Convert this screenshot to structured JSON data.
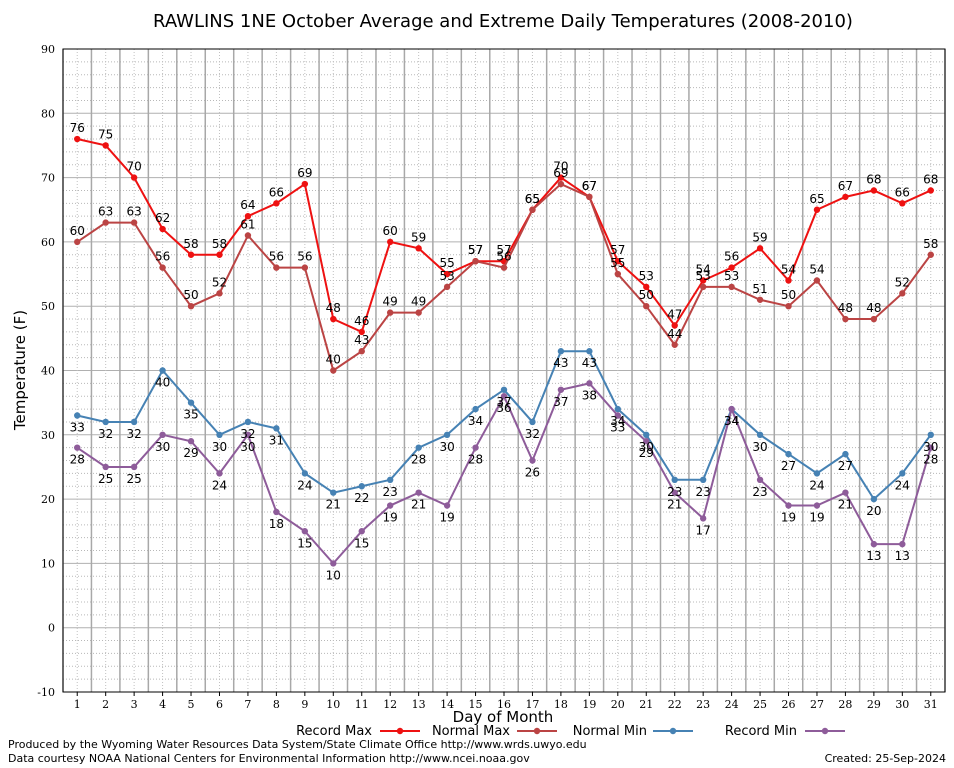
{
  "chart_data": {
    "type": "line",
    "title": "RAWLINS 1NE October Average and Extreme Daily Temperatures (2008-2010)",
    "xlabel": "Day of Month",
    "ylabel": "Temperature (F)",
    "ylim": [
      -10,
      90
    ],
    "yticks": [
      -10,
      0,
      10,
      20,
      30,
      40,
      50,
      60,
      70,
      80,
      90
    ],
    "categories": [
      "1",
      "2",
      "3",
      "4",
      "5",
      "6",
      "7",
      "8",
      "9",
      "10",
      "11",
      "12",
      "13",
      "14",
      "15",
      "16",
      "17",
      "18",
      "19",
      "20",
      "21",
      "22",
      "23",
      "24",
      "25",
      "26",
      "27",
      "28",
      "29",
      "30",
      "31"
    ],
    "grid": true,
    "legend_position": "bottom",
    "series": [
      {
        "name": "Record Max",
        "color": "#ee1111",
        "values": [
          76,
          75,
          70,
          62,
          58,
          58,
          64,
          66,
          69,
          48,
          46,
          60,
          59,
          55,
          57,
          57,
          65,
          70,
          67,
          57,
          53,
          47,
          54,
          56,
          59,
          54,
          65,
          67,
          68,
          66,
          68
        ]
      },
      {
        "name": "Normal Max",
        "color": "#bb4444",
        "values": [
          60,
          63,
          63,
          56,
          50,
          52,
          61,
          56,
          56,
          40,
          43,
          49,
          49,
          53,
          57,
          56,
          65,
          69,
          67,
          55,
          50,
          44,
          53,
          53,
          51,
          50,
          54,
          48,
          48,
          52,
          58
        ]
      },
      {
        "name": "Normal Min",
        "color": "#4682b4",
        "values": [
          33,
          32,
          32,
          40,
          35,
          30,
          32,
          31,
          24,
          21,
          22,
          23,
          28,
          30,
          34,
          37,
          32,
          43,
          43,
          34,
          30,
          23,
          23,
          34,
          30,
          27,
          24,
          27,
          20,
          24,
          30
        ]
      },
      {
        "name": "Record Min",
        "color": "#8e5c9a",
        "values": [
          28,
          25,
          25,
          30,
          29,
          24,
          30,
          18,
          15,
          10,
          15,
          19,
          21,
          19,
          28,
          36,
          26,
          37,
          38,
          33,
          29,
          21,
          17,
          34,
          23,
          19,
          19,
          21,
          13,
          13,
          28
        ]
      }
    ]
  },
  "footer": {
    "produced_by": "Produced by the Wyoming Water Resources Data System/State Climate Office http://www.wrds.uwyo.edu",
    "data_courtesy": "Data courtesy NOAA National Centers for Environmental Information http://www.ncei.noaa.gov",
    "created": "Created:  25-Sep-2024"
  }
}
